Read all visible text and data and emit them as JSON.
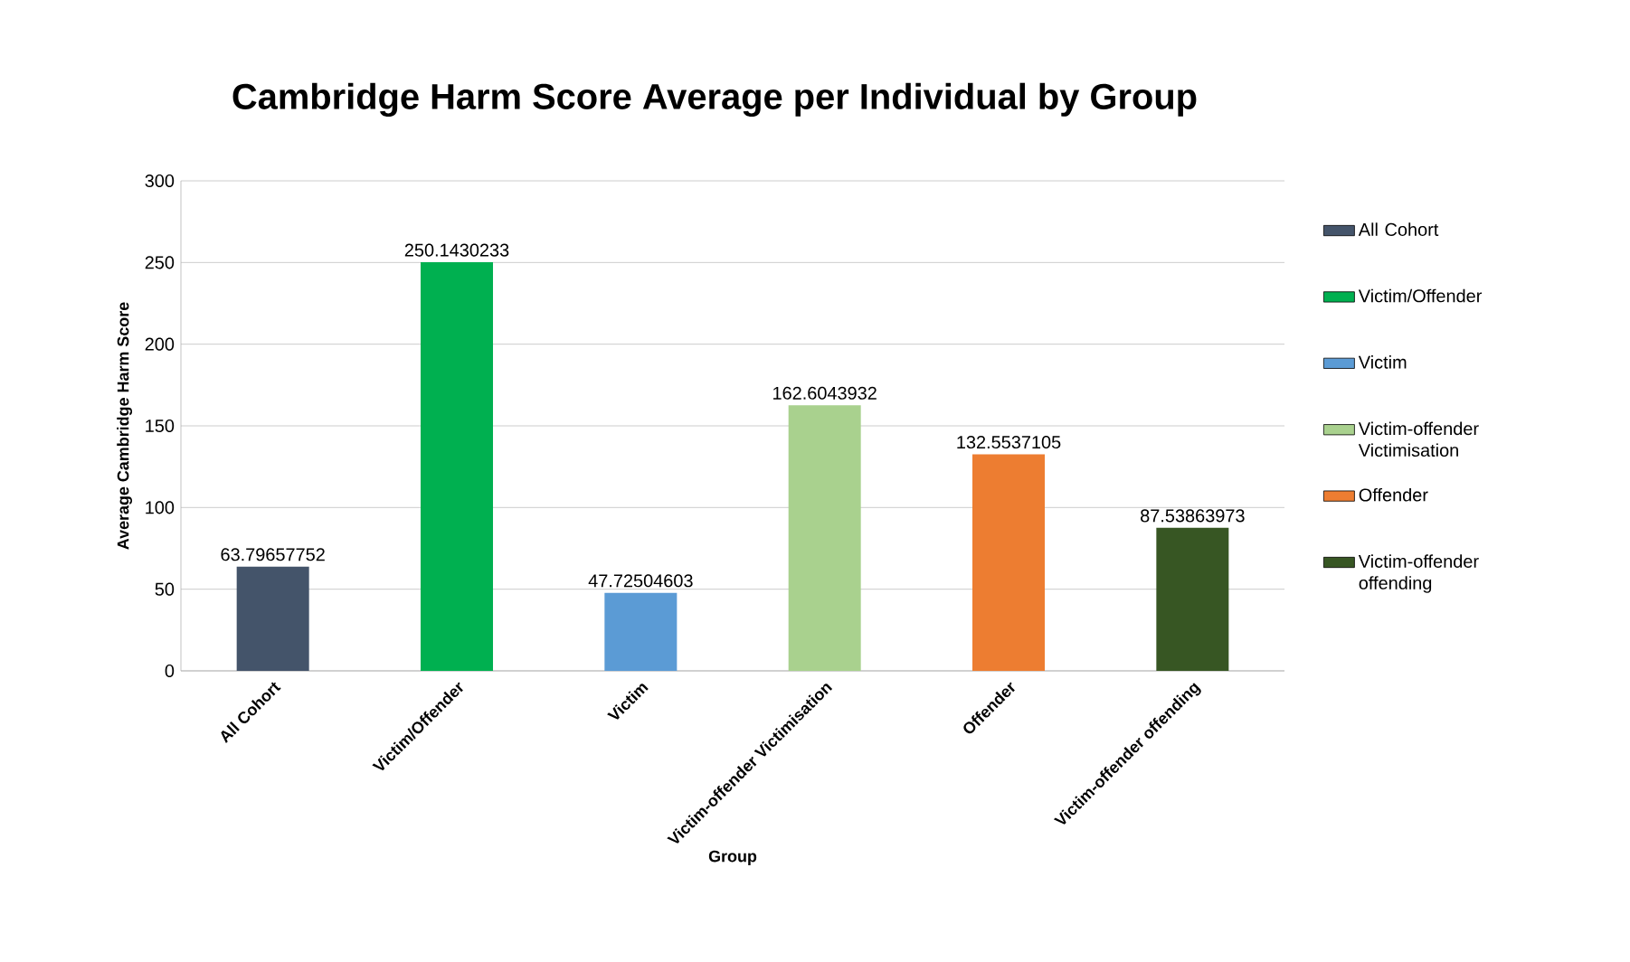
{
  "chart_data": {
    "type": "bar",
    "title": "Cambridge Harm Score Average per Individual by Group",
    "xlabel": "Group",
    "ylabel": "Average Cambridge Harm Score",
    "categories": [
      "All Cohort",
      "Victim/Offender",
      "Victim",
      "Victim-offender Victimisation",
      "Offender",
      "Victim-offender offending"
    ],
    "series": [
      {
        "name": "All Cohort",
        "color": "#44546a",
        "values": [
          63.79657752,
          null,
          null,
          null,
          null,
          null
        ]
      },
      {
        "name": "Victim/Offender",
        "color": "#00b050",
        "values": [
          null,
          250.1430233,
          null,
          null,
          null,
          null
        ]
      },
      {
        "name": "Victim",
        "color": "#5b9bd5",
        "values": [
          null,
          null,
          47.72504603,
          null,
          null,
          null
        ]
      },
      {
        "name": "Victim-offender Victimisation",
        "color": "#a9d18e",
        "values": [
          null,
          null,
          null,
          162.6043932,
          null,
          null
        ]
      },
      {
        "name": "Offender",
        "color": "#ed7d31",
        "values": [
          null,
          null,
          null,
          null,
          132.5537105,
          null
        ]
      },
      {
        "name": "Victim-offender offending",
        "color": "#375623",
        "values": [
          null,
          null,
          null,
          null,
          null,
          87.53863973
        ]
      }
    ],
    "ylim": [
      0,
      300
    ],
    "yticks": [
      0,
      50,
      100,
      150,
      200,
      250,
      300
    ],
    "grid": "y",
    "legend": "right",
    "data_labels": true
  }
}
